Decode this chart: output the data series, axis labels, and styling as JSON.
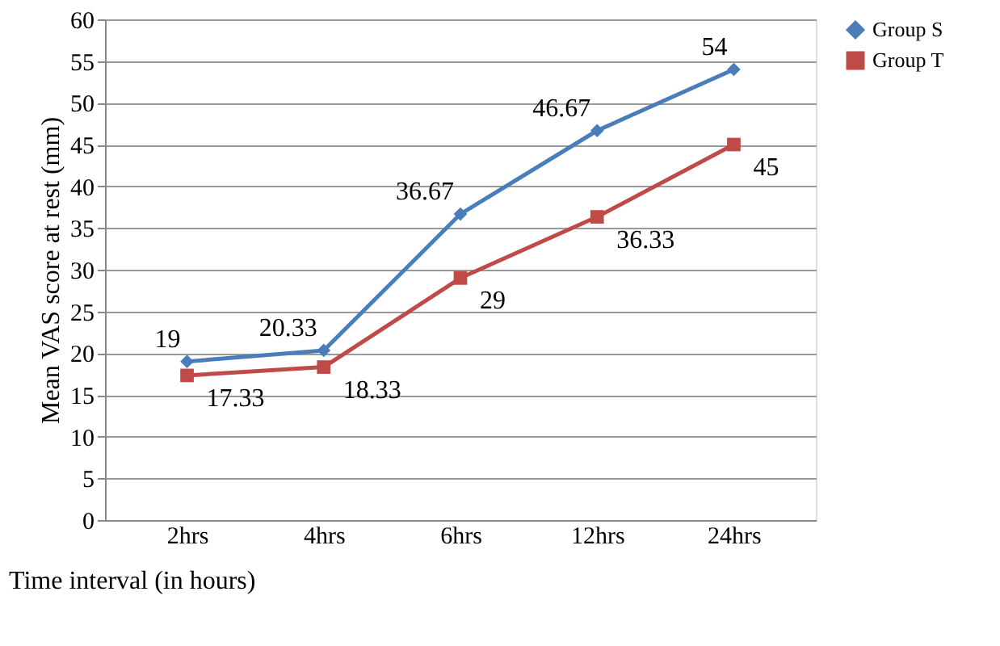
{
  "chart_data": {
    "type": "line",
    "xlabel": "Time interval (in hours)",
    "ylabel": "Mean VAS score at rest (mm)",
    "categories": [
      "2hrs",
      "4hrs",
      "6hrs",
      "12hrs",
      "24hrs"
    ],
    "series": [
      {
        "name": "Group S",
        "color": "#4a7ebb",
        "marker": "diamond",
        "values": [
          19,
          20.33,
          36.67,
          46.67,
          54
        ]
      },
      {
        "name": "Group T",
        "color": "#be4b48",
        "marker": "square",
        "values": [
          17.33,
          18.33,
          29,
          36.33,
          45
        ]
      }
    ],
    "ylim": [
      0,
      60
    ],
    "yticks": [
      0,
      5,
      10,
      15,
      20,
      25,
      30,
      35,
      40,
      45,
      50,
      55,
      60
    ],
    "grid": "y",
    "legend": "right",
    "data_labels": true,
    "line_style": "solid"
  }
}
